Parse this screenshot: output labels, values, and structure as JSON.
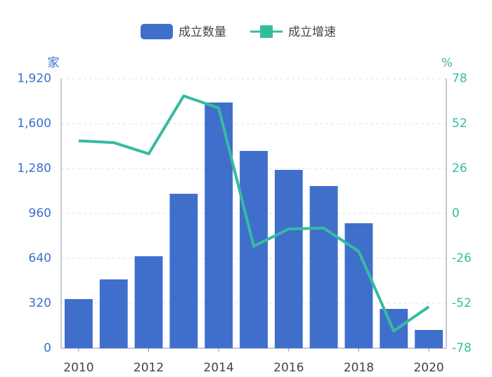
{
  "chart_data": {
    "type": "bar_line",
    "x": [
      2010,
      2011,
      2012,
      2013,
      2014,
      2015,
      2016,
      2017,
      2018,
      2019,
      2020
    ],
    "xlim": [
      2009.5,
      2020.5
    ],
    "xticks": [
      2010,
      2012,
      2014,
      2016,
      2018,
      2020
    ],
    "y_label": "家",
    "y2_label": "%",
    "ylim": [
      0,
      1920
    ],
    "yticks": [
      0,
      {
        "value": 320,
        "label": "320"
      },
      {
        "value": 640,
        "label": "640"
      },
      {
        "value": 960,
        "label": "960"
      },
      {
        "value": 1280,
        "label": "1,280"
      },
      {
        "value": 1600,
        "label": "1,600"
      },
      {
        "value": 1920,
        "label": "1,920"
      }
    ],
    "y2lim": [
      -78,
      78
    ],
    "y2ticks": [
      -78,
      -52,
      -26,
      0,
      26,
      52,
      78
    ],
    "grid": true,
    "legend": "top",
    "series": [
      {
        "name": "成立数量",
        "type": "bar",
        "color": "#3f6fcb",
        "values": [
          350,
          490,
          655,
          1100,
          1750,
          1405,
          1270,
          1155,
          890,
          280,
          130
        ]
      },
      {
        "name": "成立增速",
        "type": "line",
        "axis": "y2",
        "color": "#36bba2",
        "values": [
          42,
          41,
          34.5,
          68,
          61,
          -19,
          -9,
          -8.5,
          -22,
          -68,
          -54
        ]
      }
    ]
  }
}
